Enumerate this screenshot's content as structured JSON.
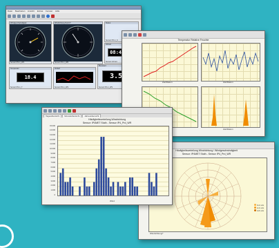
{
  "colors": {
    "background": "#2fb3c2",
    "bar_fill": "#2d4a9c",
    "line_red": "#e02020",
    "line_green": "#2aa02a",
    "line_blue": "#2b4f9e",
    "peak_orange": "#f08c00",
    "rose_orange": "#f59a1a"
  },
  "win_gauges": {
    "menu": [
      "Datei",
      "Bearbeiten",
      "Ansicht",
      "Extras",
      "Fenster",
      "Hilfe"
    ],
    "panels": {
      "wind_speed": {
        "title": "Windgeschwindigkeit",
        "footer": "Sensor IP4-1_WS"
      },
      "wind_dir": {
        "title": "Windrichtung Nord 0°",
        "footer": "Sensor IP4-1_WR"
      },
      "time": {
        "title": "Uhrzeit",
        "value": "08:44:27",
        "footer": "Sensor Uhrzeit"
      },
      "temp": {
        "title": "Temperatur",
        "value": "18.4",
        "footer": "Sensor IP4-1_T"
      },
      "trend": {
        "title": "Verlauf",
        "footer": "Sensor IP4-1_WS"
      },
      "value": {
        "title": "Messwert",
        "value": "3.56",
        "footer": "Sensor IP4-1_WS"
      },
      "small": {
        "title": "Status",
        "footer": "Sensor IP4-1_S"
      }
    }
  },
  "win_lines": {
    "header": "Temperatur Relative Feuchte",
    "tl_label": "Zeit/Datum",
    "tr_label": "Zeit/Datum",
    "bl_label": "Zeit/Datum",
    "br_label": "Zeit/Datum"
  },
  "win_bar": {
    "tabs": [
      "Tagesübersicht",
      "Monatsübersicht",
      "Jahresübersicht"
    ],
    "chart_title_1": "Häufigkeitsverteilung Windrichtung",
    "chart_title_2": "Sensor: IP4MET Stuth - Sensor IP4_Prd_WR",
    "xlabel": "Wind"
  },
  "win_rose": {
    "title_1": "Häufigkeitsverteilung Windrichtung / Windgeschwindigkeit",
    "title_2": "Sensor: IP4MET Stuth - Sensor IP4_Prd_WR",
    "legend": [
      "0-2 m/s",
      "2-4 m/s",
      "4-6 m/s"
    ],
    "footer": "Windrichtung/°"
  },
  "chart_data": {
    "type": "bar",
    "title": "Häufigkeitsverteilung Windrichtung",
    "categories": [
      "1",
      "2",
      "3",
      "4",
      "5",
      "6",
      "7",
      "8",
      "9",
      "10",
      "11",
      "12",
      "13",
      "14",
      "15",
      "16",
      "17",
      "18",
      "19",
      "20",
      "21",
      "22",
      "23",
      "24",
      "25",
      "26",
      "27",
      "28",
      "29",
      "30",
      "31",
      "32",
      "33",
      "34",
      "35",
      "36",
      "37",
      "38",
      "39",
      "40",
      "41",
      "42",
      "43",
      "44",
      "45"
    ],
    "values": [
      5,
      6,
      3,
      3,
      4,
      2,
      0,
      0,
      2,
      0,
      4,
      2,
      2,
      0,
      3,
      6,
      8,
      13,
      13,
      6,
      4,
      2,
      3,
      0,
      3,
      2,
      2,
      3,
      0,
      4,
      4,
      2,
      2,
      0,
      0,
      0,
      0,
      5,
      3,
      2,
      5,
      0,
      0,
      0,
      0
    ],
    "ylim": [
      0,
      15
    ],
    "yticks": [
      "0",
      "1.000",
      "2.000",
      "3.000",
      "4.000",
      "5.000",
      "6.000",
      "7.000",
      "8.000",
      "9.000",
      "10.000",
      "11.000",
      "12.000",
      "13.000",
      "14.000",
      "15.000"
    ],
    "xlabel": "Wind"
  }
}
